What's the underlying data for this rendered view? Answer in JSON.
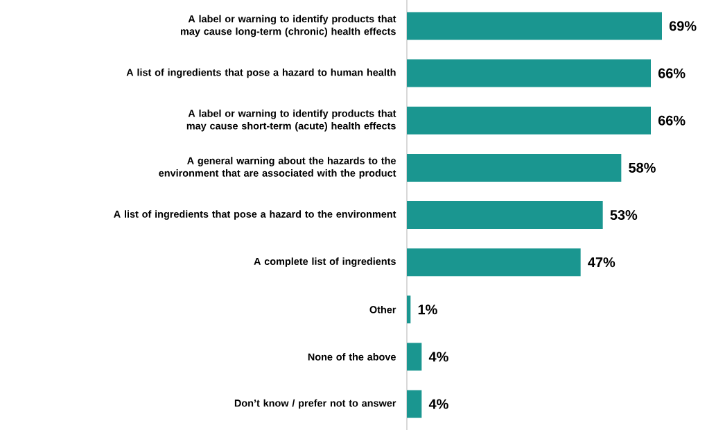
{
  "chart_data": {
    "type": "bar",
    "orientation": "horizontal",
    "categories": [
      "A label or warning to identify products that may cause long-term (chronic) health effects",
      "A list of ingredients that pose a hazard to human health",
      "A label or warning to identify products that may cause short-term (acute) health effects",
      "A general warning about the hazards to the environment that are associated with the product",
      "A list of ingredients that pose a hazard to the environment",
      "A complete list of ingredients",
      "Other",
      "None of the above",
      "Don’t know / prefer not to answer"
    ],
    "values": [
      69,
      66,
      66,
      58,
      53,
      47,
      1,
      4,
      4
    ],
    "value_labels": [
      "69%",
      "66%",
      "66%",
      "58%",
      "53%",
      "47%",
      "1%",
      "4%",
      "4%"
    ],
    "color": "#1a9690"
  }
}
